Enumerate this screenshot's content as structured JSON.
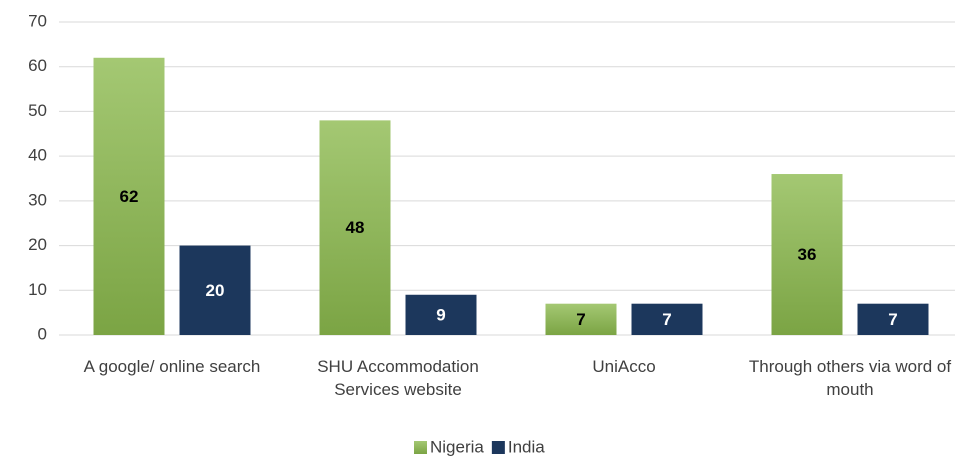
{
  "chart_data": {
    "type": "bar",
    "categories": [
      "A google/ online search",
      "SHU Accommodation Services website",
      "UniAcco",
      "Through others via word of mouth"
    ],
    "series": [
      {
        "name": "Nigeria",
        "color": "#8db559",
        "values": [
          62,
          48,
          7,
          36
        ]
      },
      {
        "name": "India",
        "color": "#1c375c",
        "values": [
          20,
          9,
          7,
          7
        ]
      }
    ],
    "ylim": [
      0,
      70
    ],
    "yticks": [
      0,
      10,
      20,
      30,
      40,
      50,
      60,
      70
    ],
    "grid": true,
    "legend": "bottom"
  }
}
